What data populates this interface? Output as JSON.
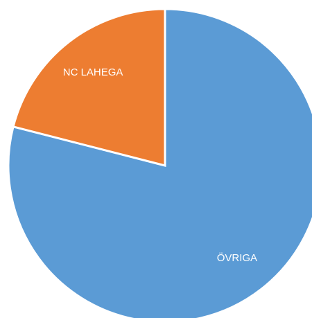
{
  "chart_data": {
    "type": "pie",
    "categories": [
      "ÖVRIGA",
      "NC LAHEGA"
    ],
    "values": [
      79,
      21
    ],
    "colors": [
      "#5b9bd5",
      "#ed7d31"
    ],
    "start_angle": 0,
    "direction": "clockwise"
  }
}
